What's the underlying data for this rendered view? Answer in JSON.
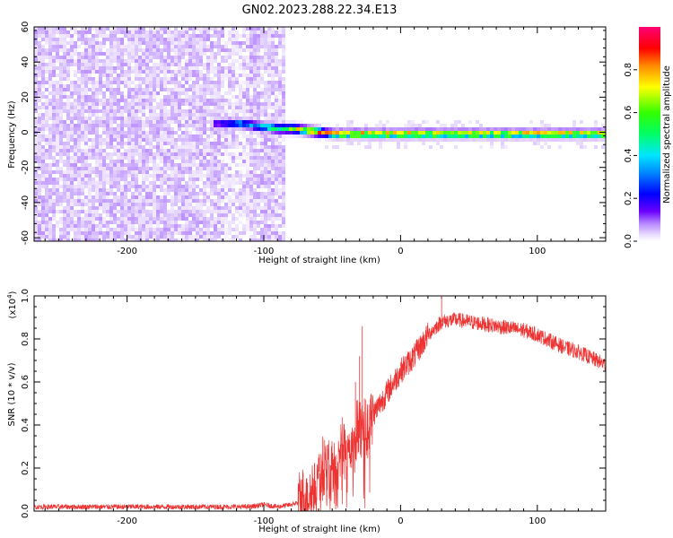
{
  "title": "GN02.2023.288.22.34.E13",
  "colors": {
    "trace": "#ee3333",
    "colormap": [
      "#ffffff",
      "#eadcff",
      "#c9a6ff",
      "#9a55ff",
      "#6a00ff",
      "#2a00ff",
      "#0000ff",
      "#0077ff",
      "#00d5ff",
      "#00ff66",
      "#66ff00",
      "#ffff00",
      "#ff8800",
      "#ff0000",
      "#ff0077"
    ]
  },
  "chart_data": [
    {
      "type": "heatmap",
      "xlabel": "Height of straight line (km)",
      "ylabel": "Frequency (Hz)",
      "xlim": [
        -268,
        150
      ],
      "ylim": [
        -62,
        60
      ],
      "xticks": [
        -200,
        -100,
        0,
        100
      ],
      "xtick_labels": [
        "-200",
        "-100",
        "0",
        "100"
      ],
      "yticks": [
        -60,
        -40,
        -20,
        0,
        20,
        40,
        60
      ],
      "ytick_labels": [
        "-60",
        "-40",
        "-20",
        "0",
        "20",
        "40",
        "60"
      ],
      "noise_region_x": [
        -268,
        -85
      ],
      "signal_band": {
        "x": [
          -138,
          -125,
          -118,
          -110,
          -100,
          -90,
          -80,
          -70,
          -60,
          -50,
          0,
          50,
          100,
          150
        ],
        "center_freq_hz": [
          6,
          6,
          6,
          5,
          4,
          3,
          3,
          2,
          1,
          0,
          0,
          0,
          0,
          0
        ],
        "peak_amplitude": [
          0.35,
          0.5,
          0.6,
          0.55,
          0.65,
          0.7,
          0.78,
          0.85,
          0.9,
          0.92,
          0.92,
          0.9,
          0.9,
          0.9
        ]
      },
      "colorbar": {
        "label": "Normalized spectral amplitude",
        "range": [
          0,
          1
        ],
        "ticks": [
          0.0,
          0.2,
          0.4,
          0.6,
          0.8
        ],
        "tick_labels": [
          "0.0",
          "0.2",
          "0.4",
          "0.6",
          "0.8"
        ]
      }
    },
    {
      "type": "line",
      "xlabel": "Height of straight line (km)",
      "ylabel": "SNR (10 * v/v)",
      "y_multiplier": "(x10",
      "y_multiplier_exp": "4",
      "y_multiplier_close": ")",
      "xlim": [
        -268,
        150
      ],
      "ylim": [
        0,
        1.0
      ],
      "xticks": [
        -200,
        -100,
        0,
        100
      ],
      "xtick_labels": [
        "-200",
        "-100",
        "0",
        "100"
      ],
      "yticks": [
        0.0,
        0.2,
        0.4,
        0.6,
        0.8,
        1.0
      ],
      "ytick_labels": [
        "0.0",
        "0.2",
        "0.4",
        "0.6",
        "0.8",
        "1.0"
      ],
      "series": [
        {
          "x": [
            -268,
            -250,
            -200,
            -150,
            -110,
            -100,
            -90,
            -80,
            -70,
            -62,
            -55,
            -48,
            -42,
            -36,
            -30,
            -25,
            -20,
            -15,
            -10,
            0,
            10,
            20,
            30,
            40,
            50,
            60,
            70,
            80,
            90,
            100,
            110,
            120,
            130,
            140,
            150
          ],
          "y": [
            0.02,
            0.02,
            0.02,
            0.02,
            0.02,
            0.03,
            0.02,
            0.03,
            0.05,
            0.12,
            0.22,
            0.18,
            0.3,
            0.28,
            0.38,
            0.38,
            0.45,
            0.5,
            0.55,
            0.65,
            0.72,
            0.82,
            0.88,
            0.89,
            0.88,
            0.87,
            0.86,
            0.85,
            0.84,
            0.82,
            0.79,
            0.76,
            0.74,
            0.71,
            0.68
          ]
        }
      ]
    }
  ]
}
